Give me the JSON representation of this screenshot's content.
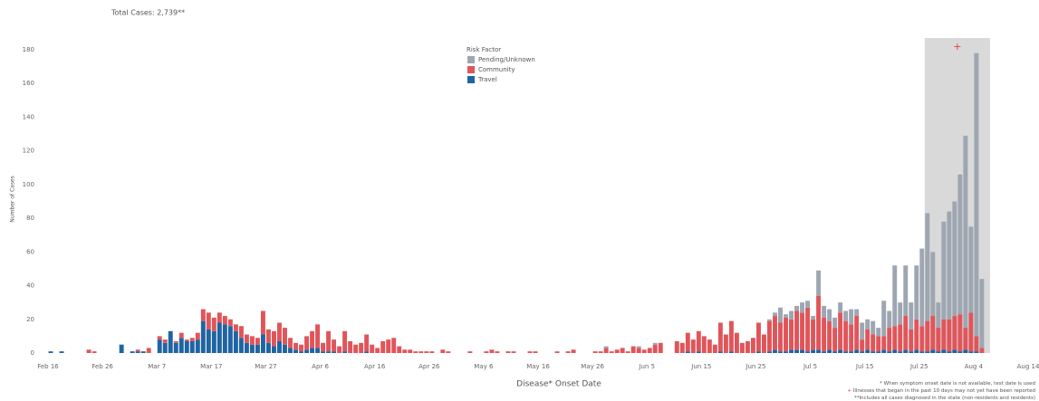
{
  "chart_data": {
    "type": "stacked_bar",
    "title": "Total Cases: 2,739**",
    "x_label": "Disease* Onset Date",
    "y_label": "Number of Cases",
    "legend_title": "Risk Factor",
    "legend_position": "top-center",
    "grid": false,
    "ylim": [
      0,
      180
    ],
    "yticks": [
      0,
      20,
      40,
      60,
      80,
      100,
      120,
      140,
      160,
      180
    ],
    "xticks": [
      "Feb 16",
      "Feb 26",
      "Mar 7",
      "Mar 17",
      "Mar 27",
      "Apr 6",
      "Apr 16",
      "Apr 26",
      "May 6",
      "May 16",
      "May 26",
      "Jun 5",
      "Jun 15",
      "Jun 25",
      "Jul 5",
      "Jul 15",
      "Jul 25",
      "Aug 4",
      "Aug 14"
    ],
    "highlight": {
      "from": "Jul 26",
      "to": "Aug 6",
      "color": "#d9d9d9",
      "marker": "+",
      "marker_color": "#e0413f"
    },
    "notes": [
      {
        "prefix": "*",
        "text": " When symptom onset date is not available, test date is used"
      },
      {
        "prefix": "+",
        "text": " Illnesses that began in the past 10 days may not yet have been reported"
      },
      {
        "prefix": "**",
        "text": "Includes all cases diagnosed in the state (non-residents and residents)"
      }
    ],
    "categories": [
      "Feb 16",
      "Feb 17",
      "Feb 18",
      "Feb 19",
      "Feb 20",
      "Feb 21",
      "Feb 22",
      "Feb 23",
      "Feb 24",
      "Feb 25",
      "Feb 26",
      "Feb 27",
      "Feb 28",
      "Feb 29",
      "Mar 1",
      "Mar 2",
      "Mar 3",
      "Mar 4",
      "Mar 5",
      "Mar 6",
      "Mar 7",
      "Mar 8",
      "Mar 9",
      "Mar 10",
      "Mar 11",
      "Mar 12",
      "Mar 13",
      "Mar 14",
      "Mar 15",
      "Mar 16",
      "Mar 17",
      "Mar 18",
      "Mar 19",
      "Mar 20",
      "Mar 21",
      "Mar 22",
      "Mar 23",
      "Mar 24",
      "Mar 25",
      "Mar 26",
      "Mar 27",
      "Mar 28",
      "Mar 29",
      "Mar 30",
      "Mar 31",
      "Apr 1",
      "Apr 2",
      "Apr 3",
      "Apr 4",
      "Apr 5",
      "Apr 6",
      "Apr 7",
      "Apr 8",
      "Apr 9",
      "Apr 10",
      "Apr 11",
      "Apr 12",
      "Apr 13",
      "Apr 14",
      "Apr 15",
      "Apr 16",
      "Apr 17",
      "Apr 18",
      "Apr 19",
      "Apr 20",
      "Apr 21",
      "Apr 22",
      "Apr 23",
      "Apr 24",
      "Apr 25",
      "Apr 26",
      "Apr 27",
      "Apr 28",
      "Apr 29",
      "Apr 30",
      "May 1",
      "May 2",
      "May 3",
      "May 4",
      "May 5",
      "May 6",
      "May 7",
      "May 8",
      "May 9",
      "May 10",
      "May 11",
      "May 12",
      "May 13",
      "May 14",
      "May 15",
      "May 16",
      "May 17",
      "May 18",
      "May 19",
      "May 20",
      "May 21",
      "May 22",
      "May 23",
      "May 24",
      "May 25",
      "May 26",
      "May 27",
      "May 28",
      "May 29",
      "May 30",
      "May 31",
      "Jun 1",
      "Jun 2",
      "Jun 3",
      "Jun 4",
      "Jun 5",
      "Jun 6",
      "Jun 7",
      "Jun 8",
      "Jun 9",
      "Jun 10",
      "Jun 11",
      "Jun 12",
      "Jun 13",
      "Jun 14",
      "Jun 15",
      "Jun 16",
      "Jun 17",
      "Jun 18",
      "Jun 19",
      "Jun 20",
      "Jun 21",
      "Jun 22",
      "Jun 23",
      "Jun 24",
      "Jun 25",
      "Jun 26",
      "Jun 27",
      "Jun 28",
      "Jun 29",
      "Jun 30",
      "Jul 1",
      "Jul 2",
      "Jul 3",
      "Jul 4",
      "Jul 5",
      "Jul 6",
      "Jul 7",
      "Jul 8",
      "Jul 9",
      "Jul 10",
      "Jul 11",
      "Jul 12",
      "Jul 13",
      "Jul 14",
      "Jul 15",
      "Jul 16",
      "Jul 17",
      "Jul 18",
      "Jul 19",
      "Jul 20",
      "Jul 21",
      "Jul 22",
      "Jul 23",
      "Jul 24",
      "Jul 25",
      "Jul 26",
      "Jul 27",
      "Jul 28",
      "Jul 29",
      "Jul 30",
      "Jul 31",
      "Aug 1",
      "Aug 2",
      "Aug 3",
      "Aug 4",
      "Aug 5",
      "Aug 6",
      "Aug 7",
      "Aug 8",
      "Aug 9",
      "Aug 10",
      "Aug 11",
      "Aug 12",
      "Aug 13",
      "Aug 14"
    ],
    "series": [
      {
        "name": "Pending/Unknown",
        "color": "#9da6b1",
        "values": [
          0,
          0,
          0,
          0,
          0,
          0,
          0,
          0,
          0,
          0,
          0,
          0,
          0,
          0,
          0,
          0,
          0,
          0,
          0,
          0,
          0,
          0,
          0,
          0,
          0,
          0,
          0,
          0,
          0,
          0,
          0,
          0,
          0,
          0,
          0,
          0,
          0,
          0,
          0,
          0,
          0,
          0,
          0,
          0,
          0,
          0,
          0,
          0,
          0,
          0,
          0,
          0,
          0,
          0,
          0,
          0,
          0,
          0,
          0,
          0,
          0,
          0,
          0,
          0,
          0,
          0,
          0,
          0,
          0,
          0,
          0,
          0,
          0,
          0,
          0,
          0,
          0,
          0,
          0,
          0,
          0,
          0,
          0,
          0,
          0,
          0,
          0,
          0,
          0,
          0,
          0,
          0,
          0,
          0,
          0,
          0,
          0,
          0,
          0,
          0,
          0,
          0,
          1,
          0,
          0,
          0,
          0,
          0,
          1,
          0,
          0,
          1,
          0,
          0,
          0,
          0,
          0,
          0,
          0,
          0,
          0,
          0,
          0,
          0,
          0,
          0,
          0,
          0,
          0,
          0,
          0,
          0,
          1,
          2,
          9,
          2,
          5,
          3,
          6,
          4,
          2,
          15,
          7,
          7,
          6,
          6,
          6,
          9,
          4,
          10,
          6,
          8,
          5,
          21,
          10,
          36,
          13,
          30,
          16,
          32,
          46,
          64,
          38,
          15,
          58,
          64,
          68,
          83,
          114,
          51,
          168,
          41,
          null,
          null,
          null,
          null,
          null,
          null,
          null,
          null,
          null
        ]
      },
      {
        "name": "Community",
        "color": "#e0555a",
        "values": [
          0,
          0,
          0,
          0,
          0,
          0,
          0,
          2,
          1,
          0,
          0,
          0,
          0,
          0,
          0,
          0,
          1,
          0,
          3,
          0,
          2,
          2,
          0,
          1,
          3,
          1,
          2,
          4,
          7,
          10,
          8,
          6,
          5,
          4,
          4,
          7,
          5,
          5,
          4,
          14,
          8,
          9,
          11,
          10,
          6,
          4,
          4,
          8,
          10,
          14,
          5,
          12,
          7,
          4,
          12,
          7,
          5,
          6,
          10,
          5,
          3,
          7,
          8,
          9,
          4,
          2,
          2,
          1,
          1,
          1,
          1,
          0,
          2,
          1,
          0,
          0,
          0,
          1,
          0,
          0,
          1,
          2,
          1,
          0,
          1,
          1,
          0,
          0,
          1,
          1,
          0,
          0,
          0,
          1,
          0,
          1,
          2,
          0,
          0,
          0,
          1,
          1,
          3,
          1,
          2,
          3,
          1,
          4,
          3,
          2,
          3,
          5,
          6,
          0,
          0,
          7,
          6,
          11,
          8,
          12,
          10,
          8,
          5,
          17,
          11,
          18,
          12,
          6,
          7,
          9,
          17,
          11,
          18,
          20,
          17,
          20,
          18,
          23,
          22,
          26,
          18,
          32,
          20,
          17,
          14,
          22,
          18,
          16,
          20,
          7,
          12,
          10,
          9,
          8,
          14,
          14,
          16,
          20,
          13,
          18,
          15,
          18,
          20,
          14,
          18,
          19,
          20,
          22,
          13,
          23,
          9,
          3,
          null,
          null,
          null,
          null,
          null,
          null,
          null,
          null,
          null
        ]
      },
      {
        "name": "Travel",
        "color": "#1f64a3",
        "values": [
          1,
          0,
          1,
          0,
          0,
          0,
          0,
          0,
          0,
          0,
          0,
          0,
          0,
          5,
          0,
          1,
          1,
          1,
          0,
          0,
          8,
          6,
          13,
          6,
          9,
          7,
          7,
          8,
          19,
          14,
          13,
          18,
          17,
          16,
          13,
          9,
          6,
          5,
          5,
          11,
          6,
          4,
          7,
          5,
          3,
          2,
          1,
          2,
          3,
          3,
          1,
          1,
          1,
          0,
          1,
          0,
          0,
          0,
          1,
          0,
          0,
          0,
          0,
          0,
          0,
          0,
          0,
          0,
          0,
          0,
          0,
          0,
          0,
          0,
          0,
          0,
          0,
          0,
          0,
          0,
          0,
          0,
          0,
          0,
          0,
          0,
          0,
          0,
          0,
          0,
          0,
          0,
          0,
          0,
          0,
          0,
          0,
          0,
          0,
          0,
          0,
          0,
          0,
          0,
          0,
          0,
          0,
          0,
          0,
          0,
          0,
          0,
          0,
          0,
          0,
          0,
          0,
          1,
          0,
          1,
          0,
          0,
          0,
          1,
          0,
          1,
          0,
          0,
          0,
          0,
          1,
          0,
          1,
          2,
          1,
          1,
          2,
          2,
          2,
          1,
          2,
          2,
          1,
          2,
          1,
          2,
          1,
          1,
          2,
          1,
          2,
          1,
          1,
          2,
          1,
          2,
          1,
          2,
          1,
          2,
          1,
          1,
          2,
          1,
          2,
          1,
          2,
          1,
          2,
          1,
          1,
          0,
          null,
          null,
          null,
          null,
          null,
          null,
          null,
          null,
          null
        ]
      }
    ]
  }
}
